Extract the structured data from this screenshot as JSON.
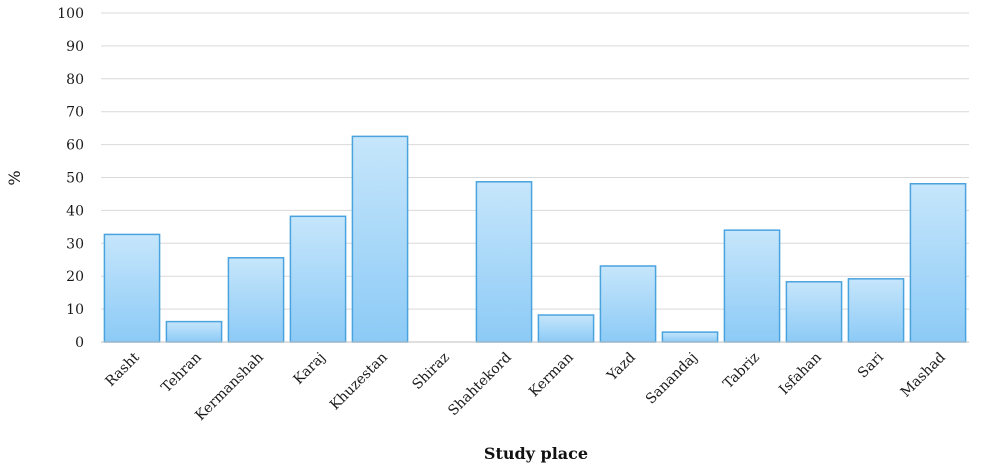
{
  "chart_data": {
    "type": "bar",
    "categories": [
      "Rasht",
      "Tehran",
      "Kermanshah",
      "Karaj",
      "Khuzestan",
      "Shiraz",
      "Shahtekord",
      "Kerman",
      "Yazd",
      "Sanandaj",
      "Tabriz",
      "Isfahan",
      "Sari",
      "Mashad"
    ],
    "values": [
      32.7,
      6.2,
      25.6,
      38.2,
      62.5,
      0,
      48.7,
      8.2,
      23.1,
      3.0,
      34.0,
      18.3,
      19.2,
      48.1
    ],
    "xlabel": "Study place",
    "ylabel": "%",
    "ylim": [
      0,
      100
    ],
    "yticks": [
      0,
      10,
      20,
      30,
      40,
      50,
      60,
      70,
      80,
      90,
      100
    ],
    "grid": true,
    "colors": {
      "bar_fill_top": "#c6e6fb",
      "bar_fill_bottom": "#8ccaf6",
      "bar_stroke": "#4aa3df",
      "grid": "#d9d9d9",
      "axis": "#bfbfbf"
    }
  }
}
